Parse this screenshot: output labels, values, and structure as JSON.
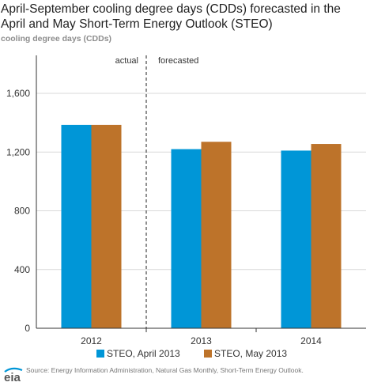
{
  "title": "April-September cooling degree days (CDDs) forecasted in the April and May Short-Term Energy Outlook (STEO)",
  "units_label": "cooling degree days (CDDs)",
  "annotations": {
    "actual": "actual",
    "forecasted": "forecasted"
  },
  "source": "Source:  Energy Information Administration, Natural Gas Monthly, Short-Term Energy Outlook.",
  "logo_text": "eia",
  "chart_data": {
    "type": "bar",
    "categories": [
      "2012",
      "2013",
      "2014"
    ],
    "series": [
      {
        "name": "STEO, April 2013",
        "values": [
          1385,
          1220,
          1210
        ],
        "color": "#0096d7"
      },
      {
        "name": "STEO, May 2013",
        "values": [
          1385,
          1270,
          1255
        ],
        "color": "#bd732a"
      }
    ],
    "ylim": [
      0,
      1600
    ],
    "yticks": [
      0,
      400,
      800,
      1200,
      1600
    ],
    "ytick_labels": [
      "0",
      "400",
      "800",
      "1,200",
      "1,600"
    ],
    "grid": true,
    "legend": "bottom-center",
    "actual_forecast_divider": "between 2012 and 2013"
  }
}
